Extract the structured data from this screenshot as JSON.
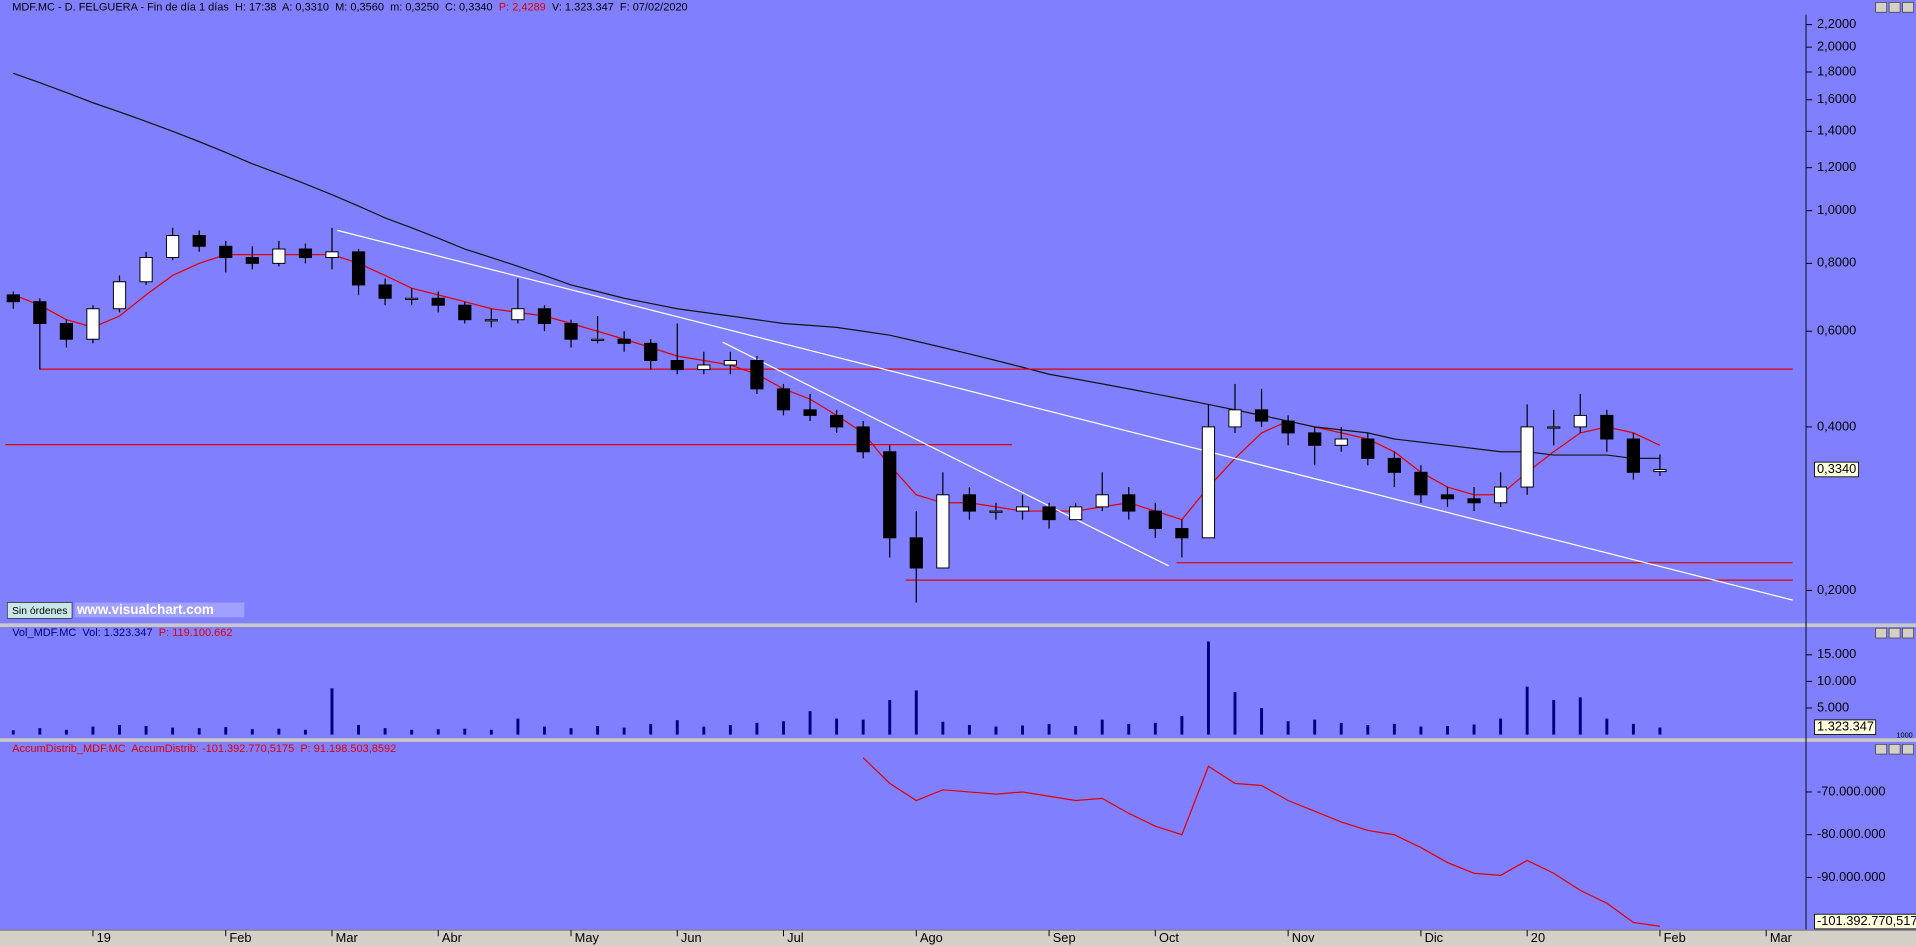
{
  "order_button": "Sin órdenes",
  "watermark": "www.visualchart.com",
  "chart_data": [
    {
      "type": "candlestick",
      "title": "MDF.MC - D. FELGUERA - Fin de día 1 días  H: 17:38  A: 0,3310  M: 0,3560  m: 0,3250  C: 0,3340  ",
      "title_red": "P: 2,4289",
      "title_tail": "  V: 1.323.347  F: 07/02/2020",
      "last_label": "0,3340",
      "log": true,
      "categories": [
        null,
        null,
        null,
        "19",
        null,
        null,
        null,
        null,
        "Feb",
        null,
        null,
        null,
        "Mar",
        null,
        null,
        null,
        "Abr",
        null,
        null,
        null,
        null,
        "May",
        null,
        null,
        null,
        "Jun",
        null,
        null,
        null,
        "Jul",
        null,
        null,
        null,
        null,
        "Ago",
        null,
        null,
        null,
        null,
        "Sep",
        null,
        null,
        null,
        "Oct",
        null,
        null,
        null,
        null,
        "Nov",
        null,
        null,
        null,
        null,
        "Dic",
        null,
        null,
        null,
        "20",
        null,
        null,
        null,
        null,
        "Feb",
        null,
        null,
        null,
        "Mar",
        null
      ],
      "open": [
        0.7,
        0.68,
        0.62,
        0.58,
        0.66,
        0.74,
        0.82,
        0.9,
        0.86,
        0.82,
        0.8,
        0.85,
        0.82,
        0.84,
        0.73,
        0.69,
        0.69,
        0.67,
        0.63,
        0.63,
        0.66,
        0.62,
        0.58,
        0.58,
        0.57,
        0.53,
        0.51,
        0.52,
        0.53,
        0.47,
        0.43,
        0.42,
        0.4,
        0.36,
        0.25,
        0.22,
        0.3,
        0.28,
        0.28,
        0.285,
        0.27,
        0.285,
        0.3,
        0.28,
        0.26,
        0.25,
        0.4,
        0.43,
        0.41,
        0.39,
        0.37,
        0.38,
        0.35,
        0.33,
        0.3,
        0.295,
        0.29,
        0.31,
        0.4,
        0.4,
        0.42,
        0.38,
        0.331,
        null,
        null,
        null,
        null,
        null
      ],
      "high": [
        0.71,
        0.69,
        0.63,
        0.67,
        0.76,
        0.84,
        0.93,
        0.92,
        0.88,
        0.86,
        0.88,
        0.87,
        0.93,
        0.85,
        0.75,
        0.72,
        0.71,
        0.68,
        0.66,
        0.75,
        0.67,
        0.63,
        0.64,
        0.6,
        0.58,
        0.62,
        0.55,
        0.55,
        0.54,
        0.48,
        0.46,
        0.43,
        0.41,
        0.37,
        0.28,
        0.33,
        0.31,
        0.29,
        0.3,
        0.29,
        0.29,
        0.33,
        0.31,
        0.29,
        0.27,
        0.44,
        0.48,
        0.47,
        0.42,
        0.4,
        0.4,
        0.39,
        0.36,
        0.34,
        0.31,
        0.31,
        0.33,
        0.44,
        0.43,
        0.46,
        0.43,
        0.39,
        0.356,
        null,
        null,
        null,
        null,
        null
      ],
      "low": [
        0.66,
        0.51,
        0.56,
        0.57,
        0.65,
        0.73,
        0.81,
        0.84,
        0.77,
        0.78,
        0.79,
        0.8,
        0.78,
        0.7,
        0.67,
        0.67,
        0.65,
        0.62,
        0.61,
        0.62,
        0.6,
        0.56,
        0.57,
        0.55,
        0.51,
        0.5,
        0.5,
        0.5,
        0.46,
        0.42,
        0.41,
        0.39,
        0.35,
        0.23,
        0.19,
        0.22,
        0.27,
        0.27,
        0.27,
        0.26,
        0.27,
        0.28,
        0.27,
        0.25,
        0.23,
        0.25,
        0.39,
        0.4,
        0.37,
        0.34,
        0.36,
        0.34,
        0.31,
        0.29,
        0.285,
        0.28,
        0.285,
        0.3,
        0.37,
        0.39,
        0.36,
        0.32,
        0.325,
        null,
        null,
        null,
        null,
        null
      ],
      "close": [
        0.68,
        0.62,
        0.58,
        0.66,
        0.74,
        0.82,
        0.9,
        0.86,
        0.82,
        0.8,
        0.85,
        0.82,
        0.84,
        0.73,
        0.69,
        0.69,
        0.67,
        0.63,
        0.63,
        0.66,
        0.62,
        0.58,
        0.58,
        0.57,
        0.53,
        0.51,
        0.52,
        0.53,
        0.47,
        0.43,
        0.42,
        0.4,
        0.36,
        0.25,
        0.22,
        0.3,
        0.28,
        0.28,
        0.285,
        0.27,
        0.285,
        0.3,
        0.28,
        0.26,
        0.25,
        0.4,
        0.43,
        0.41,
        0.39,
        0.37,
        0.38,
        0.35,
        0.33,
        0.3,
        0.295,
        0.29,
        0.31,
        0.4,
        0.4,
        0.42,
        0.38,
        0.33,
        0.334,
        null,
        null,
        null,
        null,
        null
      ],
      "series": [
        {
          "color": "#e00000",
          "values": [
            0.7,
            0.67,
            0.63,
            0.61,
            0.64,
            0.7,
            0.76,
            0.8,
            0.83,
            0.83,
            0.83,
            0.83,
            0.83,
            0.8,
            0.76,
            0.72,
            0.7,
            0.68,
            0.66,
            0.65,
            0.64,
            0.62,
            0.6,
            0.58,
            0.56,
            0.54,
            0.53,
            0.52,
            0.5,
            0.47,
            0.45,
            0.42,
            0.39,
            0.34,
            0.3,
            0.29,
            0.29,
            0.285,
            0.28,
            0.28,
            0.28,
            0.285,
            0.29,
            0.28,
            0.27,
            0.31,
            0.35,
            0.39,
            0.41,
            0.4,
            0.39,
            0.38,
            0.36,
            0.33,
            0.31,
            0.3,
            0.3,
            0.33,
            0.36,
            0.39,
            0.4,
            0.39,
            0.37,
            null,
            null,
            null,
            null,
            null
          ]
        },
        {
          "color": "#141414",
          "values": [
            1.79,
            1.72,
            1.65,
            1.58,
            1.52,
            1.46,
            1.4,
            1.34,
            1.28,
            1.22,
            1.17,
            1.12,
            1.07,
            1.02,
            0.97,
            0.93,
            0.89,
            0.85,
            0.82,
            0.79,
            0.76,
            0.73,
            0.71,
            0.69,
            0.675,
            0.66,
            0.65,
            0.64,
            0.63,
            0.62,
            0.615,
            0.61,
            0.6,
            0.59,
            0.575,
            0.56,
            0.545,
            0.53,
            0.515,
            0.5,
            0.49,
            0.48,
            0.47,
            0.46,
            0.45,
            0.44,
            0.43,
            0.42,
            0.41,
            0.4,
            0.395,
            0.39,
            0.38,
            0.375,
            0.37,
            0.365,
            0.36,
            0.36,
            0.355,
            0.355,
            0.355,
            0.35,
            0.35,
            null,
            null,
            null,
            null,
            null
          ]
        }
      ],
      "hlines": [
        {
          "value": 0.511,
          "from": 1,
          "to": 67,
          "color": "#e00000"
        },
        {
          "value": 0.371,
          "from": -0.3,
          "to": 37.6,
          "color": "#e00000"
        },
        {
          "value": 0.225,
          "from": 43.8,
          "to": 67,
          "color": "#e00000"
        },
        {
          "value": 0.209,
          "from": 33.6,
          "to": 67,
          "color": "#e00000"
        }
      ],
      "trendlines": [
        {
          "x": [
            12.2,
            67
          ],
          "y": [
            0.92,
            0.192
          ],
          "color": "#ffffff"
        },
        {
          "x": [
            26.7,
            43.5
          ],
          "y": [
            0.573,
            0.222
          ],
          "color": "#ffffff"
        }
      ],
      "ylim": [
        0.174,
        2.295
      ],
      "yticks": [
        {
          "value": 2.2,
          "label": "2,2000"
        },
        {
          "value": 2.0,
          "label": "2,0000"
        },
        {
          "value": 1.8,
          "label": "1,8000"
        },
        {
          "value": 1.6,
          "label": "1,6000"
        },
        {
          "value": 1.4,
          "label": "1,4000"
        },
        {
          "value": 1.2,
          "label": "1,2000"
        },
        {
          "value": 1.0,
          "label": "1,0000"
        },
        {
          "value": 0.8,
          "label": "0,8000"
        },
        {
          "value": 0.6,
          "label": "0,6000"
        },
        {
          "value": 0.4,
          "label": "0,4000"
        },
        {
          "value": 0.2,
          "label": "0,2000"
        }
      ]
    },
    {
      "type": "bar",
      "title": "Vol_MDF.MC  Vol: 1.323.347  ",
      "title_red": "P: 119.100.662",
      "last_label": "1.323.347",
      "unit_label": "1000",
      "color": "#00007f",
      "values": [
        800,
        1200,
        900,
        1500,
        1800,
        1600,
        1300,
        1200,
        1400,
        1000,
        1100,
        900,
        8700,
        1800,
        1200,
        900,
        1000,
        1100,
        900,
        3000,
        1500,
        1200,
        1600,
        1300,
        2000,
        2700,
        1500,
        1800,
        2200,
        2500,
        4400,
        3000,
        2800,
        6500,
        8300,
        2400,
        1800,
        1500,
        1700,
        2000,
        1600,
        2800,
        2000,
        2200,
        3500,
        17500,
        8000,
        5000,
        2500,
        2800,
        2200,
        1800,
        2000,
        1500,
        1600,
        1900,
        3000,
        9000,
        6500,
        7000,
        3000,
        2000,
        1323,
        null,
        null,
        null,
        null,
        null
      ],
      "ylim": [
        0,
        20000
      ],
      "yticks": [
        {
          "value": 15000,
          "label": "15.000"
        },
        {
          "value": 10000,
          "label": "10.000"
        },
        {
          "value": 5000,
          "label": "5.000"
        }
      ]
    },
    {
      "type": "line",
      "title": "AccumDistrib_MDF.MC  AccumDistrib: -101.392.770,5175  ",
      "title_red": "P: 91.198.503,8592",
      "last_label": "-101.392.770,517",
      "color": "#e00000",
      "values": [
        null,
        null,
        null,
        null,
        null,
        null,
        null,
        null,
        null,
        null,
        null,
        null,
        null,
        null,
        null,
        null,
        null,
        null,
        null,
        null,
        null,
        null,
        null,
        null,
        null,
        null,
        null,
        null,
        null,
        null,
        null,
        null,
        -62000000,
        -68000000,
        -72000000,
        -69500000,
        -70000000,
        -70500000,
        -70000000,
        -71000000,
        -72000000,
        -71500000,
        -75000000,
        -78000000,
        -80000000,
        -64000000,
        -68000000,
        -68500000,
        -72000000,
        -74500000,
        -77000000,
        -79000000,
        -80000000,
        -83000000,
        -86500000,
        -89000000,
        -89500000,
        -86000000,
        -89000000,
        -93000000,
        -96000000,
        -100500000,
        -101392770.5175,
        null,
        null,
        null,
        null,
        null
      ],
      "ylim": [
        -102000000,
        -60300000
      ],
      "yticks": [
        {
          "value": -70000000,
          "label": "-70.000.000"
        },
        {
          "value": -80000000,
          "label": "-80.000.000"
        },
        {
          "value": -90000000,
          "label": "-90.000.000"
        }
      ]
    }
  ]
}
